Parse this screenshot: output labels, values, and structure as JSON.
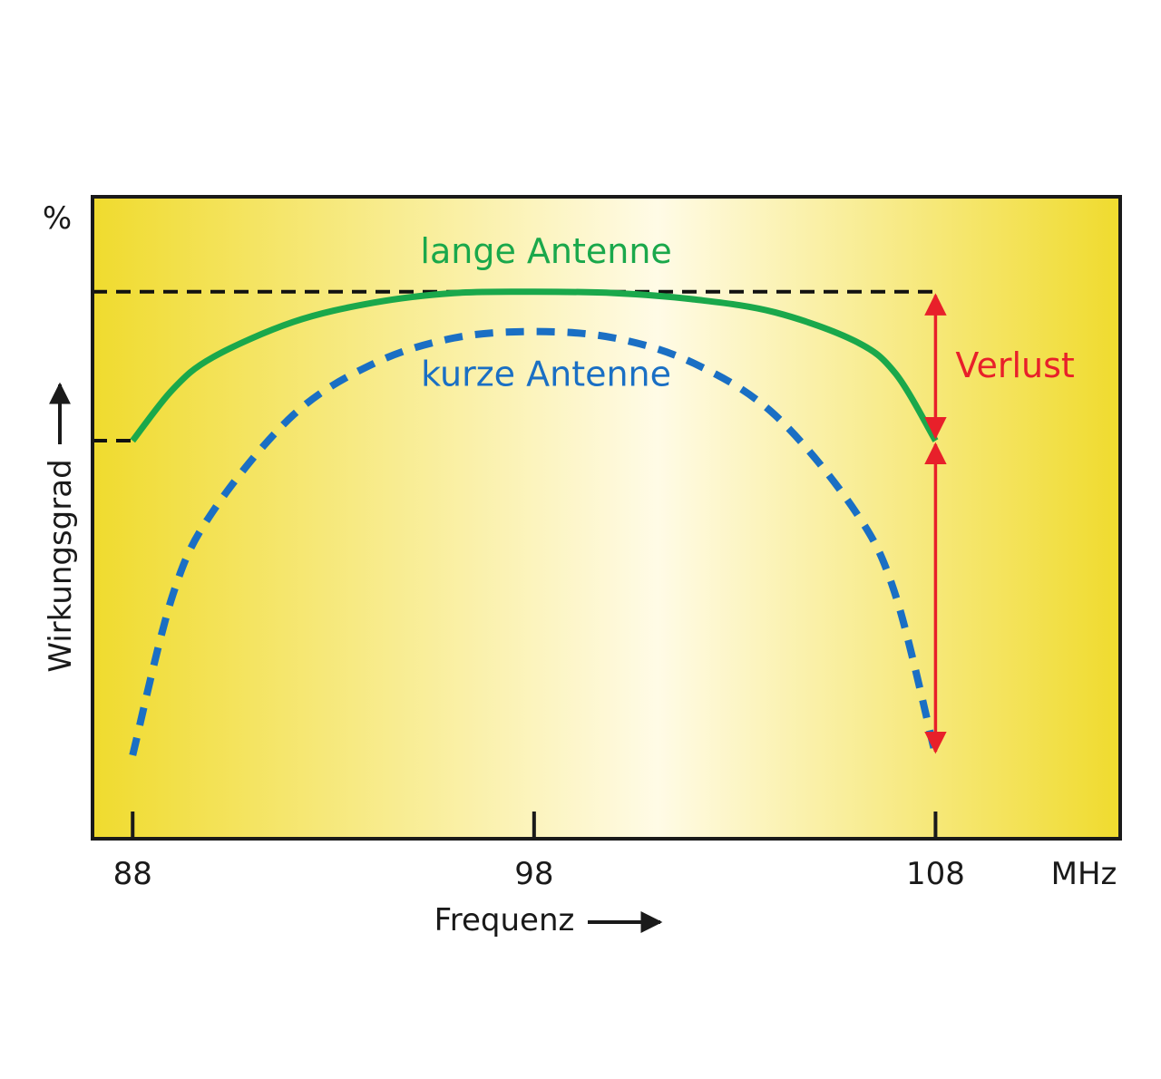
{
  "chart_data": {
    "type": "line",
    "xlabel": "Frequenz",
    "ylabel": "Wirkungsgrad",
    "y_unit": "%",
    "x_unit": "MHz",
    "x_ticks": [
      88,
      98,
      108
    ],
    "xlim": [
      87,
      112.6
    ],
    "ylim": [
      0,
      100
    ],
    "y_ticks_shown": false,
    "background": "yellow-to-cream horizontal gradient",
    "series": [
      {
        "name": "lange Antenne",
        "style": "solid",
        "color": "#1aa84b",
        "x": [
          88,
          89,
          90,
          92,
          94,
          96,
          98,
          100,
          102,
          104,
          106,
          107,
          108
        ],
        "y": [
          62,
          70,
          75,
          80.5,
          83.5,
          85,
          85.2,
          85,
          84,
          82,
          77.5,
          72.5,
          62
        ]
      },
      {
        "name": "kurze Antenne",
        "style": "dashed",
        "color": "#1a6fc4",
        "x": [
          88,
          89,
          90,
          92,
          94,
          96,
          98,
          100,
          102,
          104,
          106,
          107,
          108
        ],
        "y": [
          13,
          38,
          51,
          66,
          74,
          78,
          79,
          78,
          74,
          66,
          51,
          38,
          13
        ]
      }
    ],
    "reference_lines": [
      {
        "y": 85.2,
        "style": "dashed",
        "color": "#111111"
      },
      {
        "y": 62,
        "style": "dashed",
        "color": "#111111"
      }
    ],
    "annotations": [
      {
        "text": "Verlust",
        "color": "#e8202a",
        "x": 108,
        "y_from": 85.2,
        "y_to": 62
      },
      {
        "x": 108,
        "y_from": 62,
        "y_to": 13,
        "color": "#e8202a"
      }
    ],
    "accent_colors": {
      "frame": "#1a1a1a",
      "gradient_edge": "#f0db2e",
      "gradient_center": "#fffbe6"
    }
  }
}
